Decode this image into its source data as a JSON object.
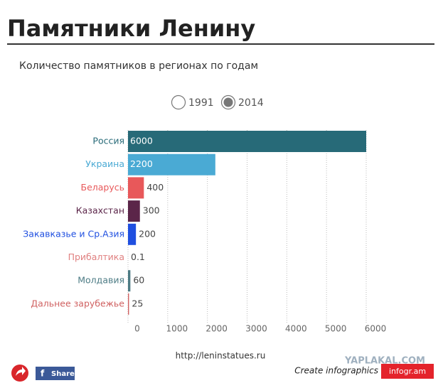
{
  "chart_data": {
    "type": "bar",
    "orientation": "horizontal",
    "title": "Памятники Ленину",
    "subtitle": "Количество памятников в регионах по годам",
    "options": [
      "1991",
      "2014"
    ],
    "selected_option": 1,
    "categories": [
      "Россия",
      "Украина",
      "Беларусь",
      "Казахстан",
      "Закавказье и Ср.Азия",
      "Прибалтика",
      "Молдавия",
      "Дальнее зарубежье"
    ],
    "values": [
      6000,
      2200,
      400,
      300,
      200,
      0.1,
      60,
      25
    ],
    "colors": [
      "#276a78",
      "#4aaad4",
      "#e8585a",
      "#5b2549",
      "#1f4fe0",
      "#e08080",
      "#4c7b84",
      "#d06262"
    ],
    "xlim": [
      0,
      6000
    ],
    "xticks": [
      0,
      1000,
      2000,
      3000,
      4000,
      5000,
      6000
    ],
    "grid": true,
    "source": "http://leninstatues.ru"
  },
  "footer": {
    "share": "Share",
    "create": "Create infographics",
    "brand": "infogr.am",
    "watermark": "YAPLAKAL.COM"
  }
}
